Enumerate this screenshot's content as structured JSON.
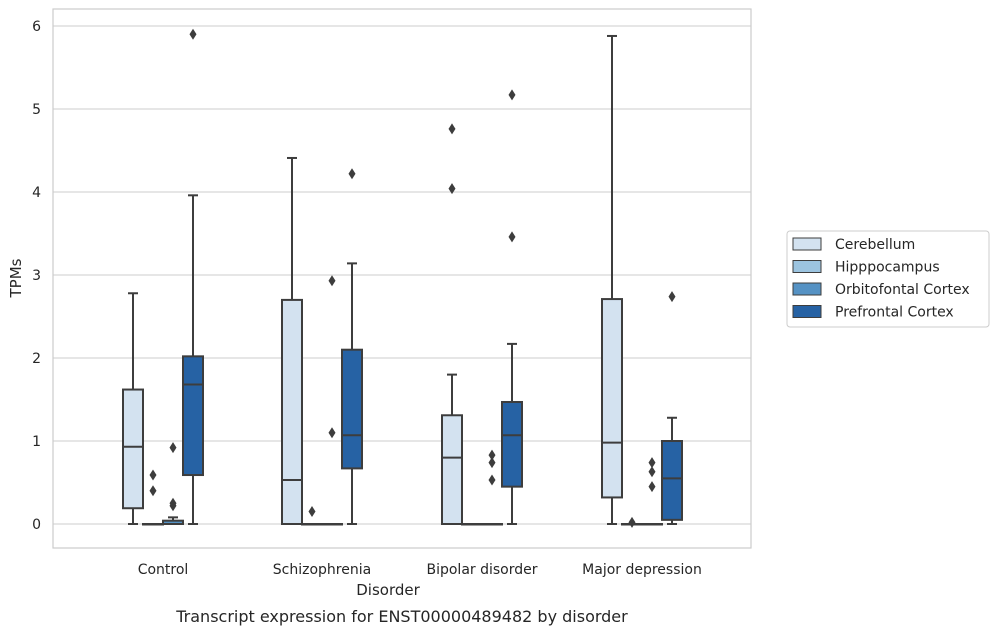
{
  "caption": "Transcript expression for ENST00000489482 by disorder",
  "chart_data": {
    "type": "boxplot",
    "title": "",
    "xlabel": "Disorder",
    "ylabel": "TPMs",
    "ylim": [
      -0.28,
      6.2
    ],
    "yticks": [
      0,
      1,
      2,
      3,
      4,
      5,
      6
    ],
    "grid": "horizontal",
    "legend_position": "right",
    "categories": [
      "Control",
      "Schizophrenia",
      "Bipolar disorder",
      "Major depression"
    ],
    "series": [
      {
        "name": "Cerebellum",
        "color": "#d3e2f0",
        "boxes": [
          {
            "whisker_low": 0,
            "q1": 0.19,
            "median": 0.93,
            "q3": 1.62,
            "whisker_high": 2.78,
            "outliers": []
          },
          {
            "whisker_low": 0,
            "q1": 0,
            "median": 0.53,
            "q3": 2.7,
            "whisker_high": 4.41,
            "outliers": []
          },
          {
            "whisker_low": 0,
            "q1": 0,
            "median": 0.8,
            "q3": 1.31,
            "whisker_high": 1.8,
            "outliers": [
              4.04,
              4.76
            ]
          },
          {
            "whisker_low": 0,
            "q1": 0.32,
            "median": 0.98,
            "q3": 2.71,
            "whisker_high": 5.88,
            "outliers": []
          }
        ]
      },
      {
        "name": "Hipppocampus",
        "color": "#9cc4e0",
        "boxes": [
          {
            "whisker_low": 0,
            "q1": 0,
            "median": 0,
            "q3": 0,
            "whisker_high": 0,
            "outliers": [
              0.4,
              0.59
            ]
          },
          {
            "whisker_low": 0,
            "q1": 0,
            "median": 0,
            "q3": 0,
            "whisker_high": 0,
            "outliers": [
              0.15
            ]
          },
          {
            "whisker_low": 0,
            "q1": 0,
            "median": 0,
            "q3": 0,
            "whisker_high": 0,
            "outliers": []
          },
          {
            "whisker_low": 0,
            "q1": 0,
            "median": 0,
            "q3": 0,
            "whisker_high": 0,
            "outliers": [
              0.02
            ]
          }
        ]
      },
      {
        "name": "Orbitofontal Cortex",
        "color": "#5592c4",
        "boxes": [
          {
            "whisker_low": 0,
            "q1": 0,
            "median": 0,
            "q3": 0.04,
            "whisker_high": 0.08,
            "outliers": [
              0.22,
              0.25,
              0.92
            ]
          },
          {
            "whisker_low": 0,
            "q1": 0,
            "median": 0,
            "q3": 0,
            "whisker_high": 0,
            "outliers": [
              1.1,
              2.93
            ]
          },
          {
            "whisker_low": 0,
            "q1": 0,
            "median": 0,
            "q3": 0,
            "whisker_high": 0,
            "outliers": [
              0.53,
              0.74,
              0.83
            ]
          },
          {
            "whisker_low": 0,
            "q1": 0,
            "median": 0,
            "q3": 0,
            "whisker_high": 0,
            "outliers": [
              0.45,
              0.63,
              0.74
            ]
          }
        ]
      },
      {
        "name": "Prefrontal Cortex",
        "color": "#2662a4",
        "boxes": [
          {
            "whisker_low": 0,
            "q1": 0.59,
            "median": 1.68,
            "q3": 2.02,
            "whisker_high": 3.96,
            "outliers": [
              5.9
            ]
          },
          {
            "whisker_low": 0,
            "q1": 0.67,
            "median": 1.07,
            "q3": 2.1,
            "whisker_high": 3.14,
            "outliers": [
              4.22
            ]
          },
          {
            "whisker_low": 0,
            "q1": 0.45,
            "median": 1.07,
            "q3": 1.47,
            "whisker_high": 2.17,
            "outliers": [
              3.46,
              5.17
            ]
          },
          {
            "whisker_low": 0,
            "q1": 0.05,
            "median": 0.55,
            "q3": 1.0,
            "whisker_high": 1.28,
            "outliers": [
              2.74
            ]
          }
        ]
      }
    ]
  }
}
